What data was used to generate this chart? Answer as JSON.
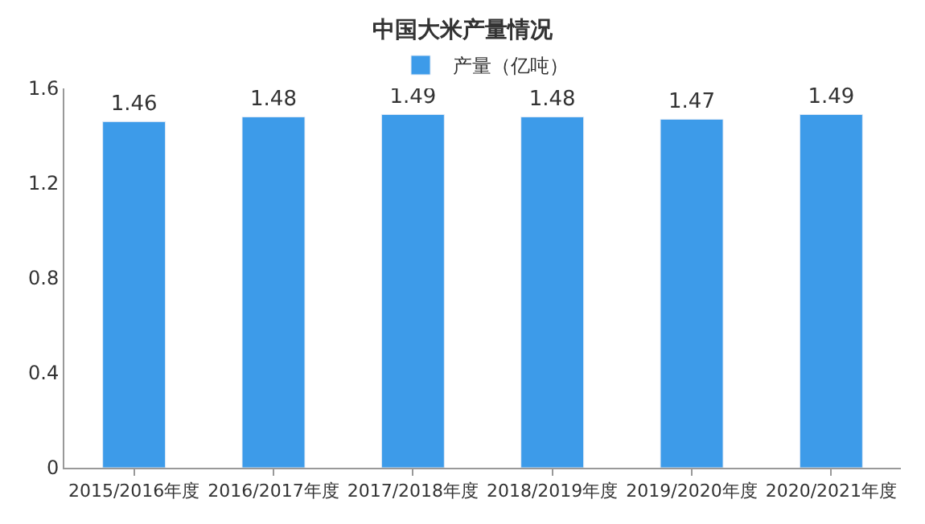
{
  "chart_data": {
    "type": "bar",
    "title": "中国大米产量情况",
    "categories": [
      "2015/2016年度",
      "2016/2017年度",
      "2017/2018年度",
      "2018/2019年度",
      "2019/2020年度",
      "2020/2021年度"
    ],
    "series": [
      {
        "name": "产量（亿吨）",
        "color": "#3d9be9",
        "values": [
          1.46,
          1.48,
          1.49,
          1.48,
          1.47,
          1.49
        ]
      }
    ],
    "ylim": [
      0,
      1.6
    ],
    "yticks": [
      0,
      0.4,
      0.8,
      1.2,
      1.6
    ],
    "grid": false,
    "legend": "top",
    "data_labels": true
  }
}
